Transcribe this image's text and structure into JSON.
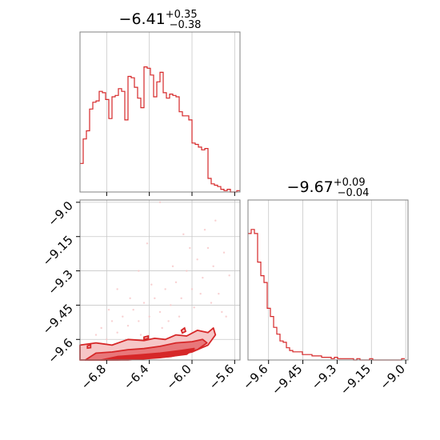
{
  "colors": {
    "line": "#d62728",
    "fill_dark": "#e8777a",
    "fill_light": "#f6c6c7",
    "frame": "#808080",
    "grid": "#c8c8c8"
  },
  "chart_data": [
    {
      "type": "histogram",
      "panel": "top-left",
      "title": {
        "median": "−6.41",
        "plus": "+0.35",
        "minus": "−0.38"
      },
      "xlim": [
        -7.05,
        -5.55
      ],
      "x_ticks": [
        -6.8,
        -6.4,
        -6.0,
        -5.6
      ],
      "grid": true,
      "bin_edges": [
        -7.05,
        -7.02,
        -6.99,
        -6.96,
        -6.93,
        -6.9,
        -6.87,
        -6.84,
        -6.81,
        -6.78,
        -6.75,
        -6.72,
        -6.69,
        -6.66,
        -6.63,
        -6.6,
        -6.57,
        -6.54,
        -6.51,
        -6.48,
        -6.45,
        -6.42,
        -6.39,
        -6.36,
        -6.33,
        -6.3,
        -6.27,
        -6.24,
        -6.21,
        -6.18,
        -6.15,
        -6.12,
        -6.09,
        -6.06,
        -6.03,
        -6.0,
        -5.97,
        -5.94,
        -5.91,
        -5.88,
        -5.85,
        -5.82,
        -5.79,
        -5.76,
        -5.73,
        -5.7,
        -5.67,
        -5.64,
        -5.61,
        -5.58,
        -5.55
      ],
      "counts": [
        0.21,
        0.39,
        0.45,
        0.61,
        0.66,
        0.67,
        0.74,
        0.73,
        0.68,
        0.54,
        0.7,
        0.71,
        0.76,
        0.74,
        0.53,
        0.85,
        0.84,
        0.77,
        0.69,
        0.62,
        0.92,
        0.91,
        0.86,
        0.7,
        0.81,
        0.88,
        0.73,
        0.69,
        0.72,
        0.71,
        0.7,
        0.59,
        0.56,
        0.56,
        0.53,
        0.36,
        0.35,
        0.33,
        0.31,
        0.32,
        0.1,
        0.06,
        0.05,
        0.04,
        0.02,
        0.01,
        0.02,
        0.0,
        0.0,
        0.01
      ]
    },
    {
      "type": "contour",
      "panel": "bottom-left",
      "xlim": [
        -7.05,
        -5.55
      ],
      "ylim": [
        -9.69,
        -8.99
      ],
      "x_ticks": [
        -6.8,
        -6.4,
        -6.0,
        -5.6
      ],
      "y_ticks": [
        -9.0,
        -9.15,
        -9.3,
        -9.45,
        -9.6
      ],
      "grid": true,
      "contours": [
        {
          "level": "outer",
          "points": [
            [
              -7.05,
              -9.69
            ],
            [
              -7.05,
              -9.625
            ],
            [
              -6.9,
              -9.615
            ],
            [
              -6.75,
              -9.625
            ],
            [
              -6.6,
              -9.6
            ],
            [
              -6.45,
              -9.605
            ],
            [
              -6.35,
              -9.595
            ],
            [
              -6.25,
              -9.6
            ],
            [
              -6.15,
              -9.58
            ],
            [
              -6.05,
              -9.585
            ],
            [
              -5.95,
              -9.56
            ],
            [
              -5.85,
              -9.57
            ],
            [
              -5.8,
              -9.55
            ],
            [
              -5.78,
              -9.58
            ],
            [
              -5.85,
              -9.625
            ],
            [
              -6.0,
              -9.655
            ],
            [
              -6.2,
              -9.675
            ],
            [
              -6.5,
              -9.685
            ],
            [
              -6.8,
              -9.69
            ]
          ]
        },
        {
          "level": "middle",
          "points": [
            [
              -7.0,
              -9.69
            ],
            [
              -6.9,
              -9.66
            ],
            [
              -6.75,
              -9.655
            ],
            [
              -6.6,
              -9.645
            ],
            [
              -6.45,
              -9.64
            ],
            [
              -6.3,
              -9.63
            ],
            [
              -6.15,
              -9.615
            ],
            [
              -6.0,
              -9.61
            ],
            [
              -5.9,
              -9.6
            ],
            [
              -5.86,
              -9.615
            ],
            [
              -5.95,
              -9.645
            ],
            [
              -6.15,
              -9.665
            ],
            [
              -6.4,
              -9.68
            ],
            [
              -6.7,
              -9.69
            ]
          ]
        },
        {
          "level": "inner",
          "points": [
            [
              -6.85,
              -9.69
            ],
            [
              -6.7,
              -9.675
            ],
            [
              -6.5,
              -9.668
            ],
            [
              -6.3,
              -9.66
            ],
            [
              -6.1,
              -9.648
            ],
            [
              -5.98,
              -9.64
            ],
            [
              -6.05,
              -9.665
            ],
            [
              -6.3,
              -9.68
            ],
            [
              -6.6,
              -9.69
            ]
          ]
        }
      ],
      "islands": [
        {
          "points": [
            [
              -6.45,
              -9.59
            ],
            [
              -6.41,
              -9.585
            ],
            [
              -6.41,
              -9.596
            ],
            [
              -6.45,
              -9.6
            ]
          ]
        },
        {
          "points": [
            [
              -6.1,
              -9.56
            ],
            [
              -6.07,
              -9.55
            ],
            [
              -6.06,
              -9.565
            ],
            [
              -6.09,
              -9.572
            ]
          ]
        },
        {
          "points": [
            [
              -6.98,
              -9.628
            ],
            [
              -6.95,
              -9.624
            ],
            [
              -6.95,
              -9.636
            ],
            [
              -6.98,
              -9.638
            ]
          ]
        }
      ],
      "scatter": [
        [
          -6.9,
          -9.58
        ],
        [
          -6.85,
          -9.55
        ],
        [
          -6.8,
          -9.6
        ],
        [
          -6.75,
          -9.52
        ],
        [
          -6.7,
          -9.57
        ],
        [
          -6.65,
          -9.5
        ],
        [
          -6.6,
          -9.54
        ],
        [
          -6.55,
          -9.47
        ],
        [
          -6.5,
          -9.52
        ],
        [
          -6.45,
          -9.44
        ],
        [
          -6.4,
          -9.5
        ],
        [
          -6.35,
          -9.42
        ],
        [
          -6.3,
          -9.48
        ],
        [
          -6.25,
          -9.38
        ],
        [
          -6.2,
          -9.45
        ],
        [
          -6.15,
          -9.35
        ],
        [
          -6.1,
          -9.42
        ],
        [
          -6.05,
          -9.3
        ],
        [
          -6.0,
          -9.38
        ],
        [
          -5.95,
          -9.25
        ],
        [
          -5.9,
          -9.33
        ],
        [
          -5.85,
          -9.2
        ],
        [
          -5.8,
          -9.28
        ],
        [
          -5.75,
          -9.4
        ],
        [
          -5.7,
          -9.22
        ],
        [
          -5.65,
          -9.32
        ],
        [
          -6.62,
          -9.6
        ],
        [
          -6.48,
          -9.58
        ],
        [
          -6.28,
          -9.55
        ],
        [
          -6.12,
          -9.5
        ],
        [
          -5.98,
          -9.46
        ],
        [
          -5.82,
          -9.44
        ],
        [
          -5.72,
          -9.48
        ],
        [
          -6.78,
          -9.47
        ],
        [
          -6.58,
          -9.42
        ],
        [
          -6.38,
          -9.36
        ],
        [
          -6.18,
          -9.28
        ],
        [
          -6.02,
          -9.2
        ],
        [
          -5.88,
          -9.12
        ],
        [
          -5.78,
          -9.08
        ],
        [
          -6.3,
          -9.0
        ],
        [
          -6.5,
          -9.3
        ],
        [
          -6.42,
          -9.18
        ],
        [
          -6.08,
          -9.14
        ],
        [
          -5.92,
          -9.4
        ],
        [
          -5.68,
          -9.5
        ],
        [
          -6.7,
          -9.38
        ],
        [
          -6.22,
          -9.52
        ]
      ]
    },
    {
      "type": "histogram",
      "panel": "bottom-right",
      "title": {
        "median": "−9.67",
        "plus": "+0.09",
        "minus": "−0.04"
      },
      "xlim": [
        -9.69,
        -8.99
      ],
      "x_ticks": [
        -9.6,
        -9.45,
        -9.3,
        -9.15,
        -9.0
      ],
      "grid": true,
      "bin_edges": [
        -9.69,
        -9.676,
        -9.662,
        -9.648,
        -9.634,
        -9.62,
        -9.606,
        -9.592,
        -9.578,
        -9.564,
        -9.55,
        -9.536,
        -9.522,
        -9.508,
        -9.494,
        -9.48,
        -9.466,
        -9.452,
        -9.438,
        -9.424,
        -9.41,
        -9.396,
        -9.382,
        -9.368,
        -9.354,
        -9.34,
        -9.326,
        -9.312,
        -9.298,
        -9.284,
        -9.27,
        -9.256,
        -9.242,
        -9.228,
        -9.214,
        -9.2,
        -9.186,
        -9.172,
        -9.158,
        -9.144,
        -9.13,
        -9.116,
        -9.102,
        -9.088,
        -9.074,
        -9.06,
        -9.046,
        -9.032,
        -9.018,
        -9.004
      ],
      "counts": [
        0.93,
        0.96,
        0.93,
        0.72,
        0.62,
        0.57,
        0.38,
        0.32,
        0.24,
        0.19,
        0.14,
        0.13,
        0.09,
        0.07,
        0.06,
        0.06,
        0.06,
        0.04,
        0.04,
        0.04,
        0.03,
        0.03,
        0.03,
        0.02,
        0.02,
        0.02,
        0.01,
        0.02,
        0.01,
        0.01,
        0.01,
        0.01,
        0.01,
        0.0,
        0.01,
        0.0,
        0.0,
        0.0,
        0.01,
        0.0,
        0.0,
        0.0,
        0.0,
        0.0,
        0.0,
        0.0,
        0.0,
        0.0,
        0.01
      ]
    }
  ]
}
